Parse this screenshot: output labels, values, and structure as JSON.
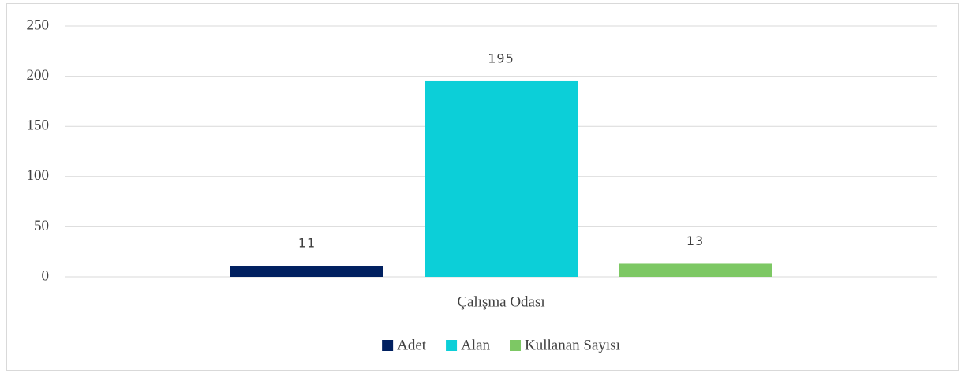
{
  "chart_data": {
    "type": "bar",
    "categories": [
      "Çalışma Odası"
    ],
    "series": [
      {
        "name": "Adet",
        "color": "#002060",
        "values": [
          11
        ]
      },
      {
        "name": "Alan",
        "color": "#0ccfd8",
        "values": [
          195
        ]
      },
      {
        "name": "Kullanan Sayısı",
        "color": "#7dc864",
        "values": [
          13
        ]
      }
    ],
    "ylim": [
      0,
      250
    ],
    "yticks": [
      0,
      50,
      100,
      150,
      200,
      250
    ],
    "grid": true,
    "legend": "bottom"
  }
}
